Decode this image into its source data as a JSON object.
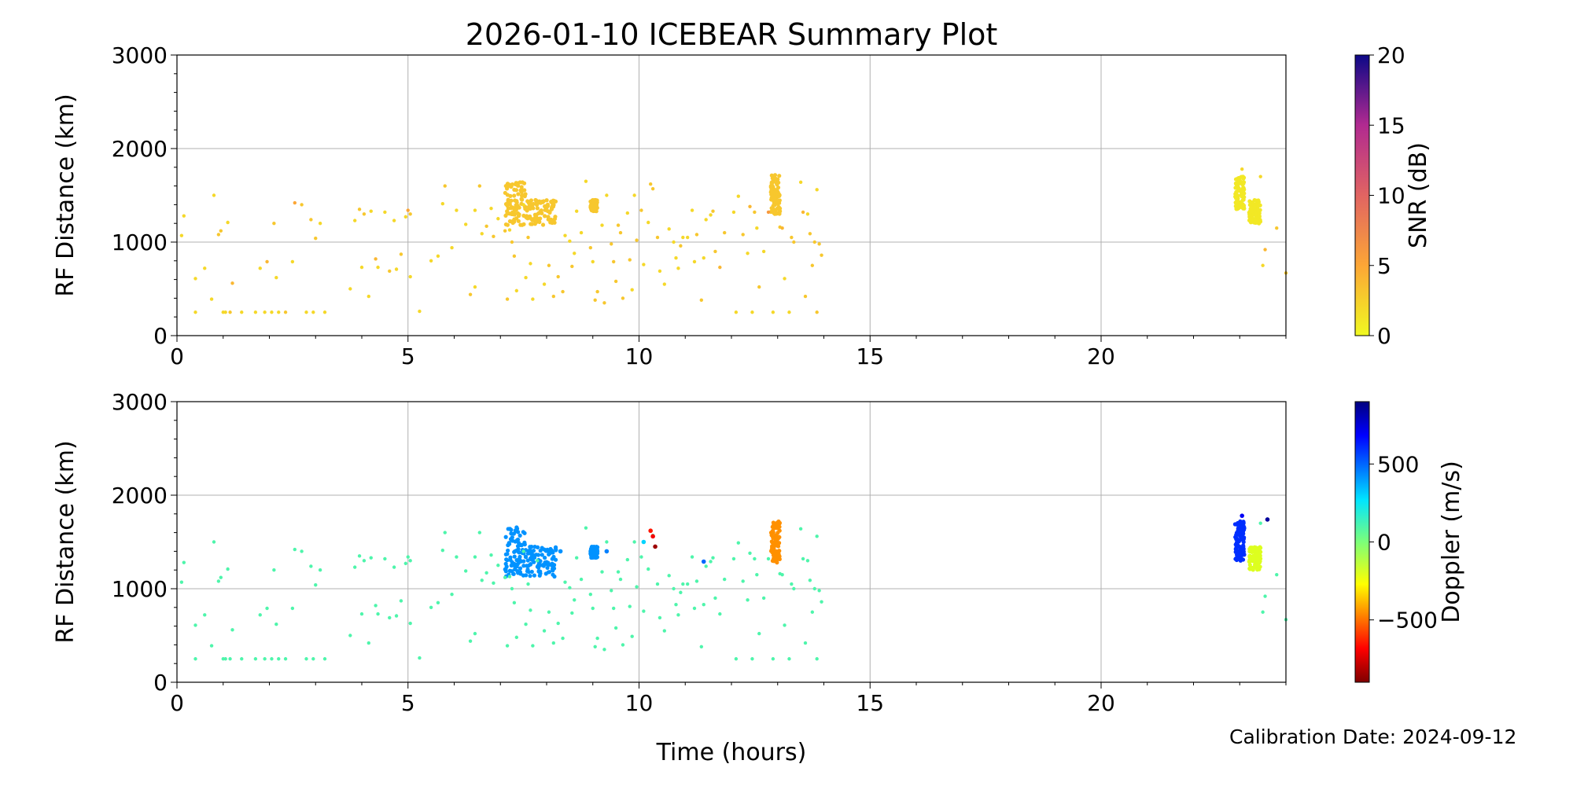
{
  "figure": {
    "title": "2026-01-10 ICEBEAR Summary Plot",
    "xlabel": "Time (hours)",
    "calibration_text": "Calibration Date: 2024-09-12"
  },
  "chart_data": [
    {
      "type": "scatter",
      "ylabel": "RF Distance (km)",
      "xlim": [
        0,
        24
      ],
      "ylim": [
        0,
        3000
      ],
      "xticks": [
        0,
        5,
        10,
        15,
        20
      ],
      "yticks": [
        0,
        1000,
        2000,
        3000
      ],
      "grid": true,
      "colorbar": {
        "label": "SNR (dB)",
        "ticks": [
          0,
          5,
          10,
          15,
          20
        ],
        "range": [
          0,
          20
        ],
        "colormap": "plasma_r"
      },
      "points": [
        [
          0.1,
          1070,
          2
        ],
        [
          0.15,
          1280,
          2
        ],
        [
          0.4,
          250,
          2
        ],
        [
          0.4,
          610,
          2
        ],
        [
          0.6,
          720,
          2
        ],
        [
          0.75,
          390,
          2
        ],
        [
          0.8,
          1500,
          2
        ],
        [
          0.9,
          1080,
          3
        ],
        [
          0.95,
          1120,
          3
        ],
        [
          1.0,
          250,
          2
        ],
        [
          1.05,
          250,
          2
        ],
        [
          1.1,
          1210,
          2
        ],
        [
          1.15,
          250,
          3
        ],
        [
          1.2,
          560,
          4
        ],
        [
          1.4,
          250,
          2
        ],
        [
          1.7,
          250,
          2
        ],
        [
          1.8,
          720,
          2
        ],
        [
          1.9,
          250,
          2
        ],
        [
          1.95,
          790,
          4
        ],
        [
          2.05,
          250,
          2
        ],
        [
          2.1,
          1200,
          3
        ],
        [
          2.15,
          620,
          2
        ],
        [
          2.2,
          250,
          2
        ],
        [
          2.35,
          250,
          3
        ],
        [
          2.5,
          790,
          2
        ],
        [
          2.55,
          1420,
          5
        ],
        [
          2.7,
          1400,
          3
        ],
        [
          2.8,
          250,
          2
        ],
        [
          2.9,
          1240,
          3
        ],
        [
          2.95,
          250,
          2
        ],
        [
          3.0,
          1040,
          3
        ],
        [
          3.1,
          1200,
          2
        ],
        [
          3.2,
          250,
          2
        ],
        [
          3.75,
          500,
          2
        ],
        [
          3.85,
          1230,
          2
        ],
        [
          3.95,
          1350,
          3
        ],
        [
          4.0,
          730,
          2
        ],
        [
          4.05,
          1300,
          3
        ],
        [
          4.15,
          420,
          2
        ],
        [
          4.2,
          1330,
          2
        ],
        [
          4.3,
          820,
          4
        ],
        [
          4.35,
          730,
          2
        ],
        [
          4.5,
          1320,
          2
        ],
        [
          4.6,
          690,
          3
        ],
        [
          4.7,
          1230,
          2
        ],
        [
          4.75,
          710,
          2
        ],
        [
          4.85,
          870,
          3
        ],
        [
          4.95,
          1270,
          2
        ],
        [
          5.0,
          1340,
          5
        ],
        [
          5.05,
          1300,
          3
        ],
        [
          5.05,
          630,
          2
        ],
        [
          5.25,
          260,
          2
        ],
        [
          5.5,
          800,
          2
        ],
        [
          5.65,
          850,
          2
        ],
        [
          5.75,
          1410,
          2
        ],
        [
          5.8,
          1600,
          3
        ],
        [
          5.95,
          940,
          2
        ],
        [
          6.05,
          1340,
          2
        ],
        [
          6.25,
          1190,
          2
        ],
        [
          6.35,
          440,
          3
        ],
        [
          6.45,
          520,
          2
        ],
        [
          6.45,
          1340,
          2
        ],
        [
          6.55,
          1600,
          3
        ],
        [
          6.6,
          1090,
          2
        ],
        [
          6.7,
          1170,
          3
        ],
        [
          6.8,
          1360,
          2
        ],
        [
          6.85,
          1060,
          3
        ],
        [
          6.95,
          1250,
          2
        ],
        [
          7.1,
          1120,
          3
        ],
        [
          7.15,
          390,
          3
        ],
        [
          7.2,
          1130,
          2
        ],
        [
          7.25,
          1000,
          3
        ],
        [
          7.3,
          850,
          3
        ],
        [
          7.35,
          480,
          2
        ],
        [
          7.5,
          1400,
          2
        ],
        [
          7.55,
          620,
          2
        ],
        [
          7.6,
          1050,
          3
        ],
        [
          7.65,
          770,
          2
        ],
        [
          7.7,
          390,
          2
        ],
        [
          7.8,
          1300,
          3
        ],
        [
          7.95,
          550,
          2
        ],
        [
          8.05,
          750,
          3
        ],
        [
          8.15,
          420,
          3
        ],
        [
          8.25,
          630,
          3
        ],
        [
          8.35,
          470,
          3
        ],
        [
          8.4,
          1070,
          2
        ],
        [
          8.5,
          1010,
          2
        ],
        [
          8.55,
          740,
          3
        ],
        [
          8.6,
          880,
          2
        ],
        [
          8.65,
          1330,
          2
        ],
        [
          8.75,
          1100,
          2
        ],
        [
          8.85,
          1650,
          2
        ],
        [
          8.95,
          940,
          3
        ],
        [
          9.0,
          790,
          2
        ],
        [
          9.05,
          380,
          3
        ],
        [
          9.1,
          470,
          3
        ],
        [
          9.2,
          1180,
          2
        ],
        [
          9.25,
          350,
          3
        ],
        [
          9.3,
          1500,
          2
        ],
        [
          9.4,
          980,
          3
        ],
        [
          9.45,
          790,
          3
        ],
        [
          9.5,
          580,
          3
        ],
        [
          9.55,
          1180,
          3
        ],
        [
          9.6,
          1100,
          3
        ],
        [
          9.65,
          400,
          3
        ],
        [
          9.75,
          1310,
          2
        ],
        [
          9.8,
          810,
          3
        ],
        [
          9.85,
          490,
          2
        ],
        [
          9.9,
          1500,
          2
        ],
        [
          9.95,
          1020,
          3
        ],
        [
          10.05,
          1340,
          3
        ],
        [
          10.1,
          760,
          2
        ],
        [
          10.2,
          1210,
          2
        ],
        [
          10.25,
          1620,
          3
        ],
        [
          10.3,
          1570,
          3
        ],
        [
          10.4,
          1050,
          3
        ],
        [
          10.45,
          690,
          2
        ],
        [
          10.55,
          550,
          2
        ],
        [
          10.65,
          1140,
          2
        ],
        [
          10.75,
          1000,
          2
        ],
        [
          10.8,
          830,
          2
        ],
        [
          10.85,
          720,
          2
        ],
        [
          10.9,
          960,
          3
        ],
        [
          10.95,
          1050,
          2
        ],
        [
          11.05,
          1050,
          2
        ],
        [
          11.15,
          1340,
          2
        ],
        [
          11.2,
          790,
          2
        ],
        [
          11.25,
          1080,
          3
        ],
        [
          11.35,
          380,
          3
        ],
        [
          11.4,
          830,
          2
        ],
        [
          11.45,
          1240,
          2
        ],
        [
          11.55,
          1290,
          2
        ],
        [
          11.6,
          1330,
          3
        ],
        [
          11.65,
          900,
          3
        ],
        [
          11.75,
          730,
          4
        ],
        [
          11.85,
          1100,
          3
        ],
        [
          12.05,
          1320,
          2
        ],
        [
          12.1,
          250,
          2
        ],
        [
          12.15,
          1490,
          2
        ],
        [
          12.25,
          1080,
          3
        ],
        [
          12.35,
          880,
          2
        ],
        [
          12.4,
          1380,
          4
        ],
        [
          12.45,
          250,
          2
        ],
        [
          12.5,
          1320,
          3
        ],
        [
          12.55,
          1150,
          2
        ],
        [
          12.6,
          520,
          3
        ],
        [
          12.7,
          900,
          2
        ],
        [
          12.8,
          1320,
          6
        ],
        [
          12.9,
          250,
          2
        ],
        [
          13.05,
          1160,
          3
        ],
        [
          13.1,
          1150,
          4
        ],
        [
          13.15,
          610,
          2
        ],
        [
          13.25,
          250,
          2
        ],
        [
          13.3,
          1050,
          3
        ],
        [
          13.35,
          1000,
          3
        ],
        [
          13.5,
          1640,
          2
        ],
        [
          13.55,
          1320,
          4
        ],
        [
          13.6,
          420,
          3
        ],
        [
          13.65,
          1300,
          2
        ],
        [
          13.7,
          1090,
          3
        ],
        [
          13.75,
          750,
          3
        ],
        [
          13.8,
          1000,
          3
        ],
        [
          13.85,
          1560,
          2
        ],
        [
          13.85,
          250,
          3
        ],
        [
          13.9,
          980,
          3
        ],
        [
          13.95,
          860,
          3
        ],
        [
          23.05,
          1780,
          2
        ],
        [
          23.45,
          1700,
          2
        ],
        [
          23.55,
          920,
          4
        ],
        [
          23.5,
          750,
          2
        ],
        [
          23.8,
          1150,
          3
        ],
        [
          24.0,
          670,
          3
        ]
      ],
      "clusters": [
        {
          "x": [
            7.1,
            7.55
          ],
          "y": [
            1180,
            1640
          ],
          "snr": 3
        },
        {
          "x": [
            7.55,
            8.2
          ],
          "y": [
            1180,
            1450
          ],
          "snr": 3
        },
        {
          "x": [
            8.95,
            9.1
          ],
          "y": [
            1330,
            1450
          ],
          "snr": 3
        },
        {
          "x": [
            12.85,
            13.05
          ],
          "y": [
            1300,
            1720
          ],
          "snr": 3
        },
        {
          "x": [
            22.9,
            23.1
          ],
          "y": [
            1350,
            1700
          ],
          "snr": 1
        },
        {
          "x": [
            23.2,
            23.45
          ],
          "y": [
            1200,
            1450
          ],
          "snr": 1
        }
      ]
    },
    {
      "type": "scatter",
      "ylabel": "RF Distance (km)",
      "xlim": [
        0,
        24
      ],
      "ylim": [
        0,
        3000
      ],
      "xticks": [
        0,
        5,
        10,
        15,
        20
      ],
      "yticks": [
        0,
        1000,
        2000,
        3000
      ],
      "grid": true,
      "colorbar": {
        "label": "Doppler (m/s)",
        "ticks": [
          -500,
          0,
          500
        ],
        "range": [
          -900,
          900
        ],
        "colormap": "jet_r"
      },
      "scatter_doppler_default": 100,
      "clusters": [
        {
          "x": [
            7.1,
            7.55
          ],
          "y": [
            1130,
            1660
          ],
          "doppler": 420
        },
        {
          "x": [
            7.55,
            8.2
          ],
          "y": [
            1130,
            1450
          ],
          "doppler": 420
        },
        {
          "x": [
            8.95,
            9.1
          ],
          "y": [
            1330,
            1450
          ],
          "doppler": 420
        },
        {
          "x": [
            12.85,
            13.05
          ],
          "y": [
            1280,
            1720
          ],
          "doppler": -450
        },
        {
          "x": [
            22.9,
            23.1
          ],
          "y": [
            1300,
            1720
          ],
          "doppler": 600
        },
        {
          "x": [
            23.2,
            23.45
          ],
          "y": [
            1200,
            1450
          ],
          "doppler": -200
        }
      ],
      "special_points": [
        [
          10.25,
          1620,
          -650
        ],
        [
          10.3,
          1560,
          -700
        ],
        [
          10.35,
          1450,
          -850
        ],
        [
          10.1,
          1500,
          300
        ],
        [
          11.4,
          1290,
          500
        ],
        [
          8.3,
          1400,
          420
        ],
        [
          9.3,
          1400,
          450
        ],
        [
          23.05,
          1780,
          700
        ],
        [
          23.6,
          1740,
          850
        ]
      ]
    }
  ]
}
